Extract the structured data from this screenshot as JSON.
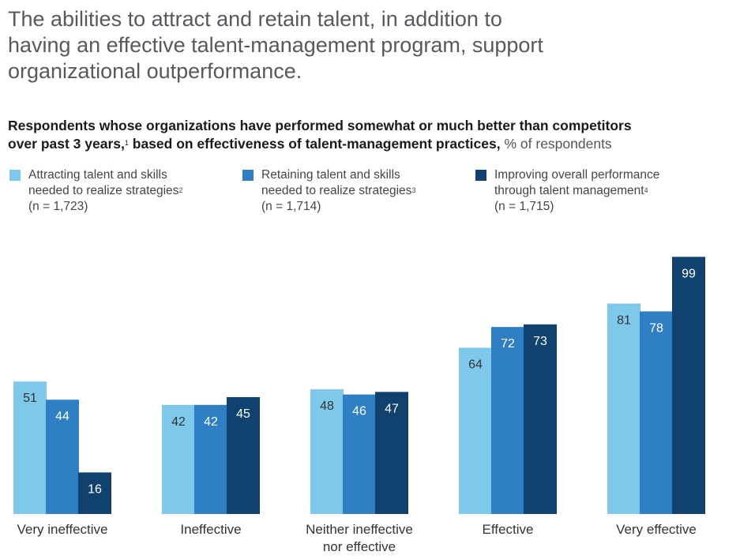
{
  "headline": [
    "The abilities to attract and retain talent, in addition to",
    "having an effective talent-management program, support",
    "organizational outperformance."
  ],
  "subtitle": {
    "bold_line1": "Respondents whose organizations have performed somewhat or much better than competitors",
    "bold_line2a": "over past 3 years,",
    "fn1": "1",
    "bold_line2b": " based on effectiveness of talent-management practices,",
    "unit": "% of respondents"
  },
  "legend": [
    {
      "line1": "Attracting talent and skills",
      "line2": "needed to realize strategies",
      "fn": "2",
      "n": "(n = 1,723)",
      "color": "#7ec8ec"
    },
    {
      "line1": "Retaining talent and skills",
      "line2": "needed to realize strategies",
      "fn": "3",
      "n": "(n = 1,714)",
      "color": "#2f7fc4"
    },
    {
      "line1": "Improving overall performance",
      "line2": "through talent management",
      "fn": "4",
      "n": "(n = 1,715)",
      "color": "#11416e"
    }
  ],
  "chart_data": {
    "type": "bar",
    "title": "Respondents whose organizations have performed somewhat or much better than competitors over past 3 years, based on effectiveness of talent-management practices, % of respondents",
    "categories": [
      [
        "Very ineffective"
      ],
      [
        "Ineffective"
      ],
      [
        "Neither ineffective",
        "nor effective"
      ],
      [
        "Effective"
      ],
      [
        "Very effective"
      ]
    ],
    "series": [
      {
        "name": "Attracting talent and skills needed to realize strategies",
        "values": [
          51,
          42,
          48,
          64,
          81
        ],
        "color": "#7ec8ec",
        "label_color": "#333333"
      },
      {
        "name": "Retaining talent and skills needed to realize strategies",
        "values": [
          44,
          42,
          46,
          72,
          78
        ],
        "color": "#2f7fc4",
        "label_color": "#ffffff"
      },
      {
        "name": "Improving overall performance through talent management",
        "values": [
          16,
          45,
          47,
          73,
          99
        ],
        "color": "#11416e",
        "label_color": "#ffffff"
      }
    ],
    "ylim": [
      0,
      100
    ],
    "xlabel": "",
    "ylabel": ""
  }
}
